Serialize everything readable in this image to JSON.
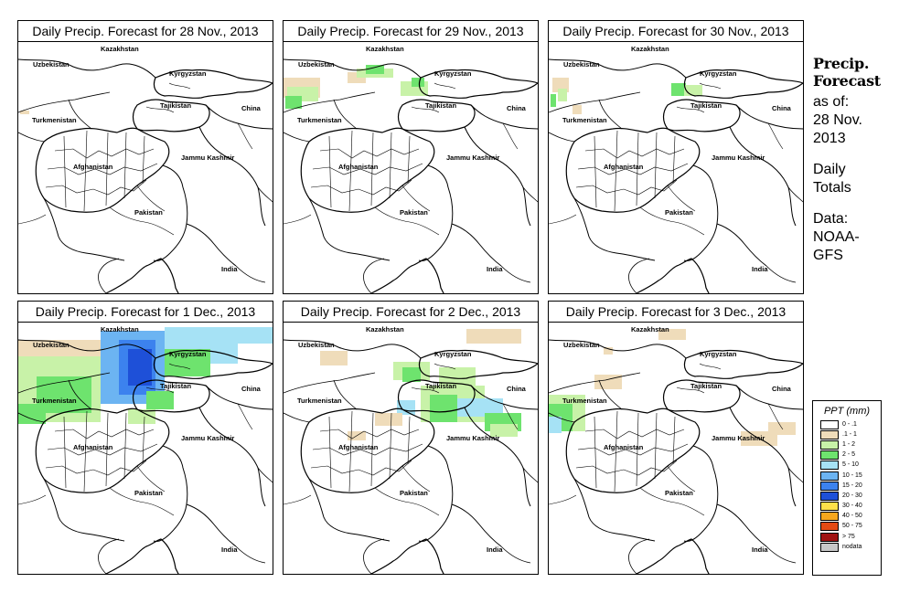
{
  "panels": [
    {
      "title": "Daily Precip. Forecast for  28 Nov., 2013",
      "rain": "r28"
    },
    {
      "title": "Daily Precip. Forecast for  29 Nov., 2013",
      "rain": "r29"
    },
    {
      "title": "Daily Precip. Forecast for  30 Nov., 2013",
      "rain": "r30"
    },
    {
      "title": "Daily Precip. Forecast for  1 Dec., 2013",
      "rain": "r01"
    },
    {
      "title": "Daily Precip. Forecast for  2 Dec., 2013",
      "rain": "r02"
    },
    {
      "title": "Daily Precip. Forecast for  3 Dec., 2013",
      "rain": "r03"
    }
  ],
  "map_labels": {
    "kazakhstan": "Kazakhstan",
    "uzbekistan": "Uzbekistan",
    "kyrgyzstan": "Kyrgyzstan",
    "tajikistan": "Tajikistan",
    "china": "China",
    "turkmenistan": "Turkmenistan",
    "afghanistan": "Afghanistan",
    "jammu_kashmir": "Jammu Kashmir",
    "pakistan": "Pakistan",
    "india": "India"
  },
  "side_panel": {
    "title_line1": "Precip.",
    "title_line2": "Forecast",
    "asof_line1": "as of:",
    "asof_line2": "28 Nov.",
    "asof_line3": "2013",
    "daily_line1": "Daily",
    "daily_line2": "Totals",
    "data_line1": "Data:",
    "data_line2": "NOAA-",
    "data_line3": "GFS"
  },
  "legend": {
    "title": "PPT (mm)",
    "items": [
      {
        "label": "0 - .1",
        "color": "#ffffff"
      },
      {
        "label": ".1 - 1",
        "color": "#efdcba"
      },
      {
        "label": "1 - 2",
        "color": "#c8f2a8"
      },
      {
        "label": "2 - 5",
        "color": "#6ee36e"
      },
      {
        "label": "5 - 10",
        "color": "#a6e2f5"
      },
      {
        "label": "10 - 15",
        "color": "#6cb4f2"
      },
      {
        "label": "15 - 20",
        "color": "#3c82ee"
      },
      {
        "label": "20 - 30",
        "color": "#1e50d8"
      },
      {
        "label": "30 - 40",
        "color": "#ffe14a"
      },
      {
        "label": "40 - 50",
        "color": "#f7a71e"
      },
      {
        "label": "50 - 75",
        "color": "#e34a14"
      },
      {
        "label": "> 75",
        "color": "#a01414"
      },
      {
        "label": "nodata",
        "color": "#c8c8c8"
      }
    ]
  },
  "colors": {
    "tan": "#efdcba",
    "light_green": "#c8f2a8",
    "green": "#6ee36e",
    "light_blue": "#a6e2f5",
    "blue": "#6cb4f2",
    "mid_blue": "#3c82ee",
    "dark_blue": "#1e50d8"
  }
}
